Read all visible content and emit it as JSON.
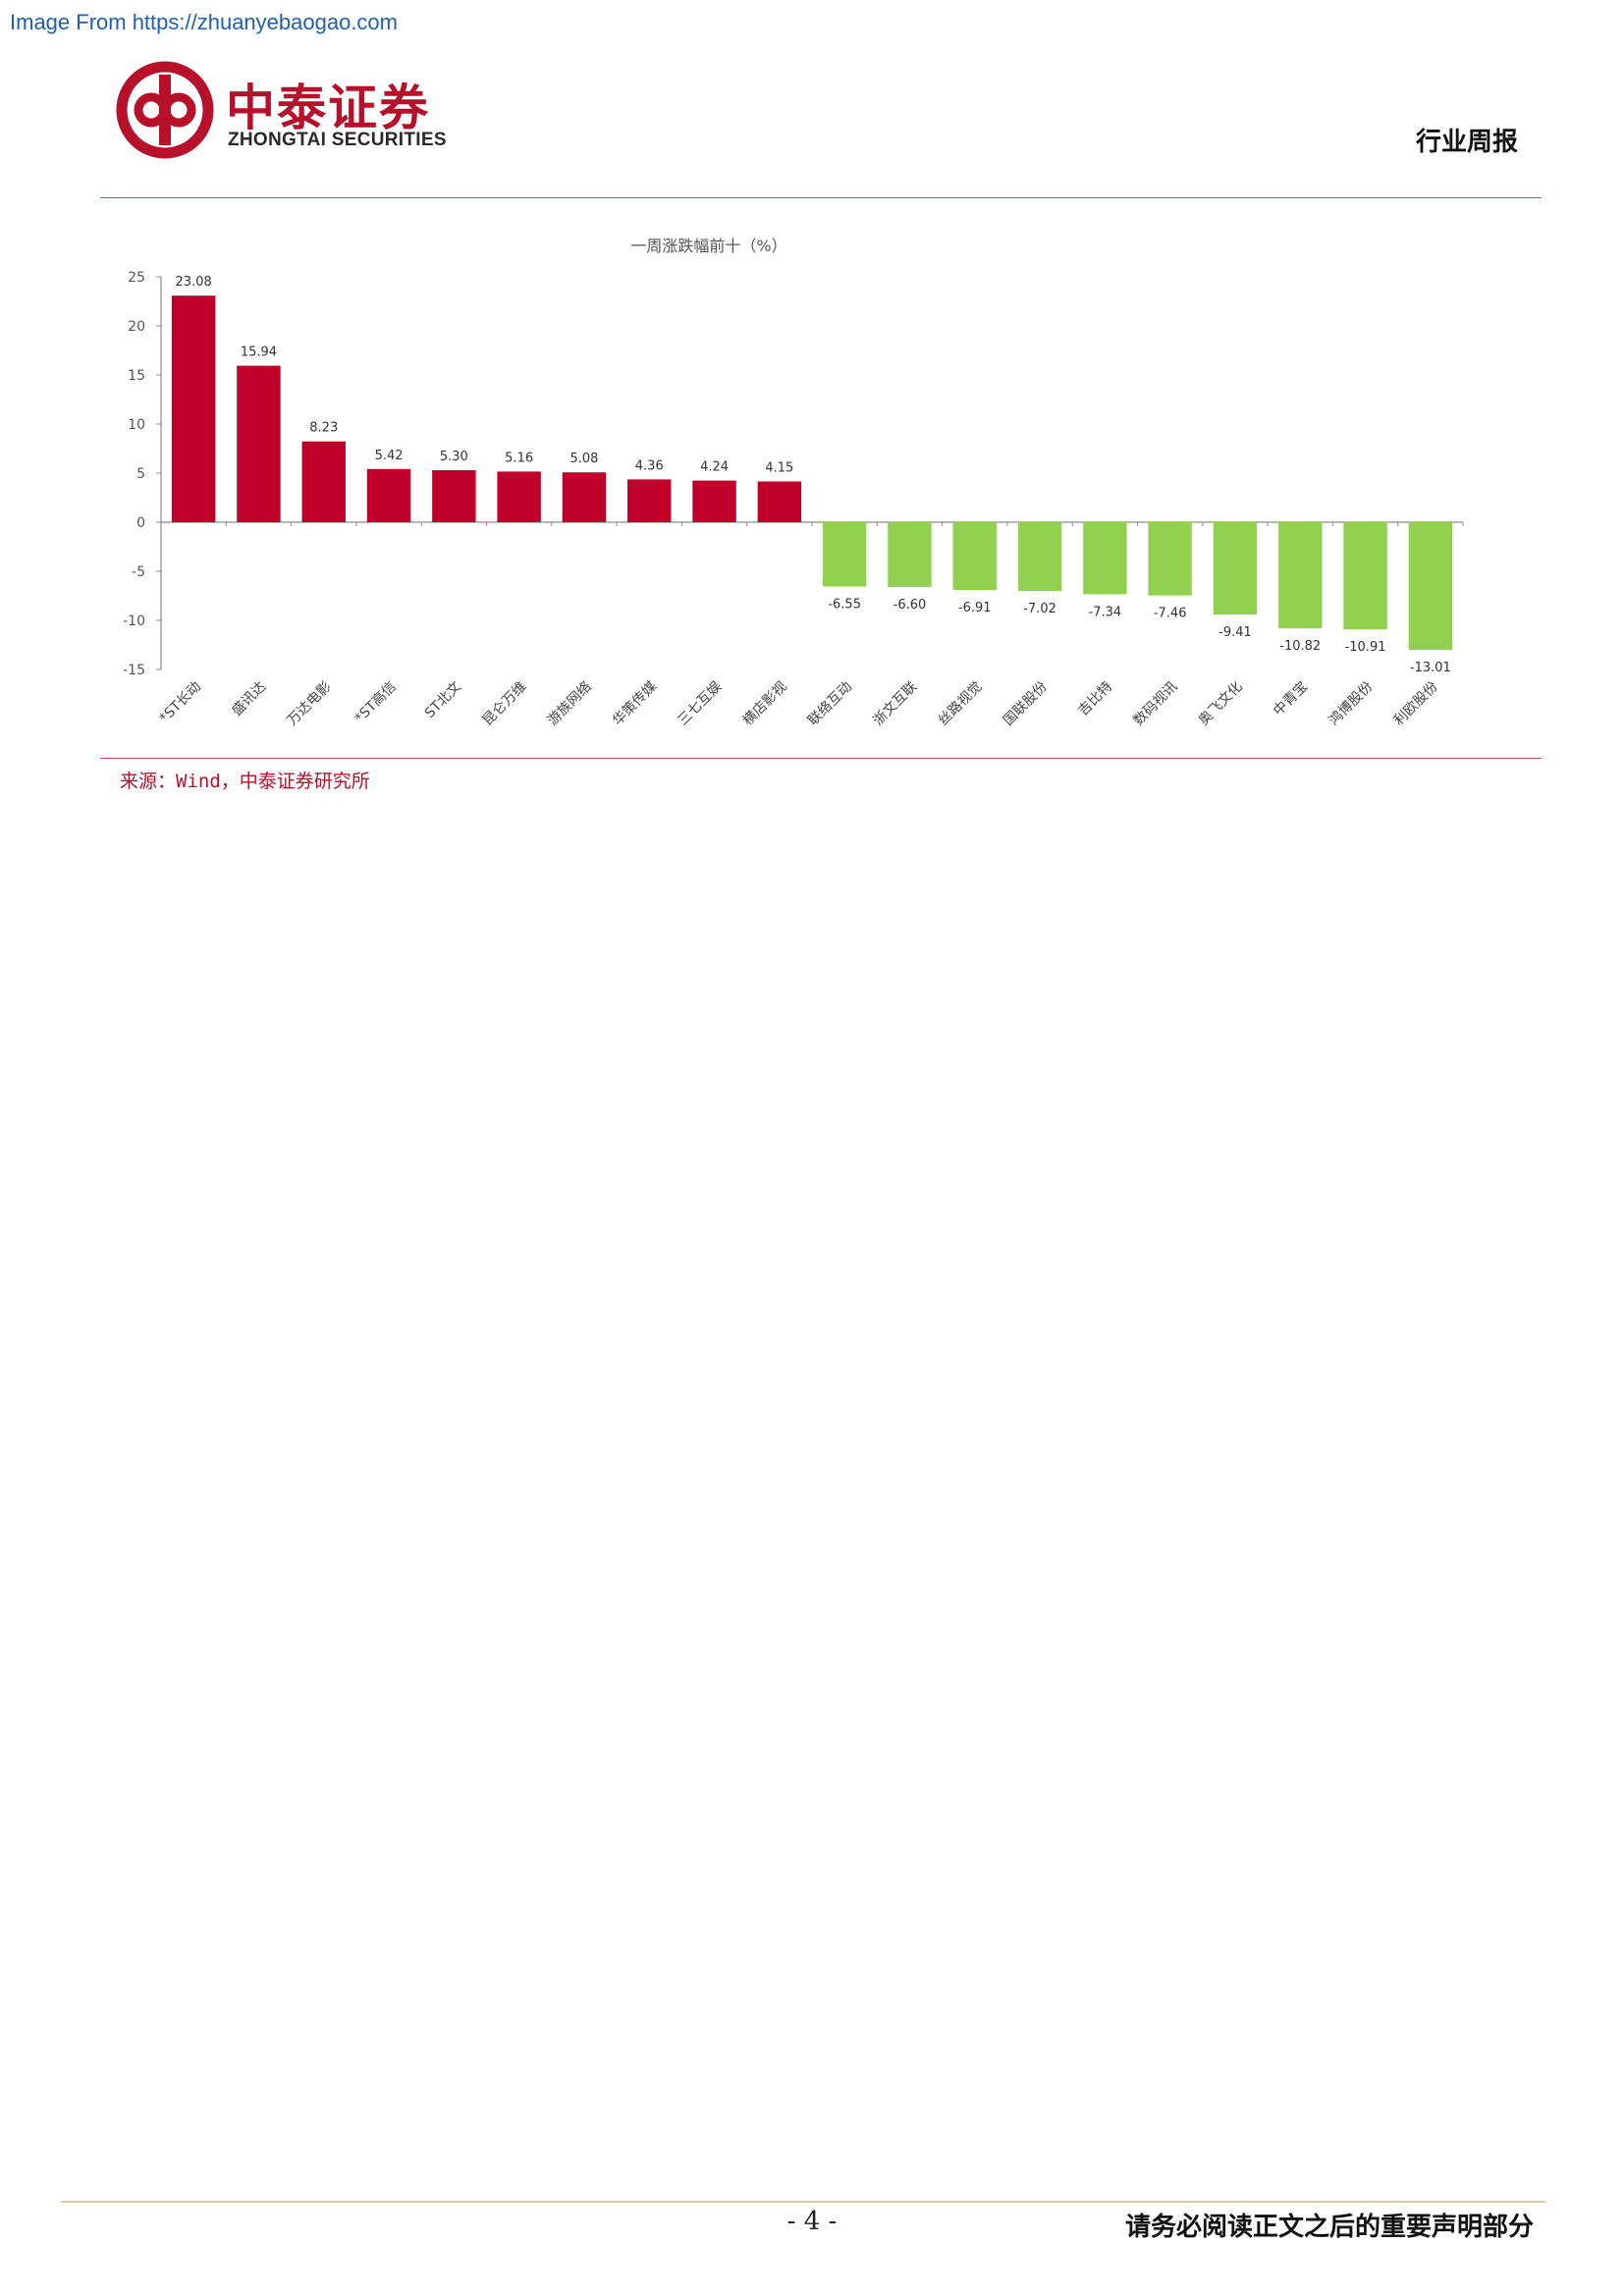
{
  "watermark": "Image From https://zhuanyebaogao.com",
  "header": {
    "logo_cn": "中泰证券",
    "logo_en": "ZHONGTAI SECURITIES",
    "report_type": "行业周报"
  },
  "chart_data": {
    "type": "bar",
    "title": "一周涨跌幅前十（%）",
    "ylim": [
      -15,
      25
    ],
    "yticks": [
      25,
      20,
      15,
      10,
      5,
      0,
      -5,
      -10,
      -15
    ],
    "categories": [
      "*ST长动",
      "盛讯达",
      "万达电影",
      "*ST高信",
      "ST北文",
      "昆仑万维",
      "游族网络",
      "华策传媒",
      "三七互娱",
      "横店影视",
      "联络互动",
      "浙文互联",
      "丝路视觉",
      "国联股份",
      "吉比特",
      "数码视讯",
      "奥飞文化",
      "中青宝",
      "鸿博股份",
      "利欧股份"
    ],
    "values": [
      23.08,
      15.94,
      8.23,
      5.42,
      5.3,
      5.16,
      5.08,
      4.36,
      4.24,
      4.15,
      -6.55,
      -6.6,
      -6.91,
      -7.02,
      -7.34,
      -7.46,
      -9.41,
      -10.82,
      -10.91,
      -13.01
    ],
    "value_labels": [
      "23.08",
      "15.94",
      "8.23",
      "5.42",
      "5.30",
      "5.16",
      "5.08",
      "4.36",
      "4.24",
      "4.15",
      "-6.55",
      "-6.60",
      "-6.91",
      "-7.02",
      "-7.34",
      "-7.46",
      "-9.41",
      "-10.82",
      "-10.91",
      "-13.01"
    ],
    "colors": {
      "positive": "#c0002a",
      "negative": "#92d050",
      "axis": "#8c8c8c"
    },
    "grid": false,
    "legend": "none"
  },
  "source": "来源：Wind，中泰证券研究所",
  "footer": {
    "page_number": "- 4 -",
    "disclaimer": "请务必阅读正文之后的重要声明部分"
  }
}
